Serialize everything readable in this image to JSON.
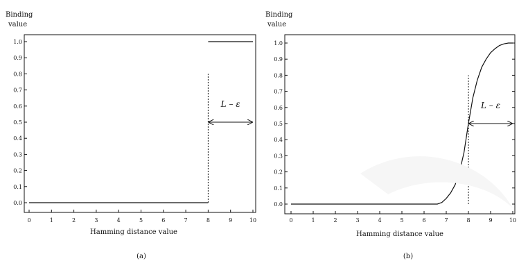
{
  "figure_labels": {
    "a": "(a)",
    "b": "(b)"
  },
  "annotation": "L – ε",
  "chart_data": [
    {
      "type": "line",
      "panel": "(a)",
      "title": "",
      "ylabel": "Binding value",
      "xlabel": "Hamming distance value",
      "xlim": [
        0,
        10
      ],
      "ylim": [
        0,
        1
      ],
      "xticks": [
        0,
        1,
        2,
        3,
        4,
        5,
        6,
        7,
        8,
        9,
        10
      ],
      "yticks": [
        0.0,
        0.1,
        0.2,
        0.3,
        0.4,
        0.5,
        0.6,
        0.7,
        0.8,
        0.9,
        1.0
      ],
      "ytick_labels": [
        "0.0",
        "0.1",
        "0.2",
        "0.3",
        "0.4",
        "0.5",
        "0.6",
        "0.7",
        "0.8",
        "0.9",
        "1.0"
      ],
      "grid": false,
      "series": [
        {
          "x": [
            0,
            8
          ],
          "y": [
            0,
            0
          ]
        },
        {
          "x": [
            8,
            10
          ],
          "y": [
            1,
            1
          ]
        }
      ],
      "threshold_x": 8,
      "annotation": {
        "text": "L – ε",
        "x_from": 8,
        "x_to": 10,
        "y": 0.5
      }
    },
    {
      "type": "line",
      "panel": "(b)",
      "title": "",
      "ylabel": "Binding value",
      "xlabel": "Hamming distance value",
      "xlim": [
        0,
        10
      ],
      "ylim": [
        0,
        1
      ],
      "xticks": [
        0,
        1,
        2,
        3,
        4,
        5,
        6,
        7,
        8,
        9,
        10
      ],
      "yticks": [
        0.0,
        0.1,
        0.2,
        0.3,
        0.4,
        0.5,
        0.6,
        0.7,
        0.8,
        0.9,
        1.0
      ],
      "ytick_labels": [
        "0.0",
        "0.1",
        "0.2",
        "0.3",
        "0.4",
        "0.5",
        "0.6",
        "0.7",
        "0.8",
        "0.9",
        "1.0"
      ],
      "grid": false,
      "series": [
        {
          "x": [
            0,
            6.6,
            6.8,
            7.0,
            7.2,
            7.4,
            7.6,
            7.8,
            8.0,
            8.2,
            8.4,
            8.6,
            8.8,
            9.0,
            9.2,
            9.4,
            9.6,
            9.8,
            10
          ],
          "y": [
            0,
            0,
            0.01,
            0.035,
            0.07,
            0.12,
            0.2,
            0.32,
            0.5,
            0.66,
            0.77,
            0.85,
            0.9,
            0.94,
            0.965,
            0.985,
            0.995,
            1.0,
            1.0
          ]
        }
      ],
      "threshold_x": 8,
      "annotation": {
        "text": "L – ε",
        "x_from": 8,
        "x_to": 10,
        "y": 0.5
      }
    }
  ]
}
